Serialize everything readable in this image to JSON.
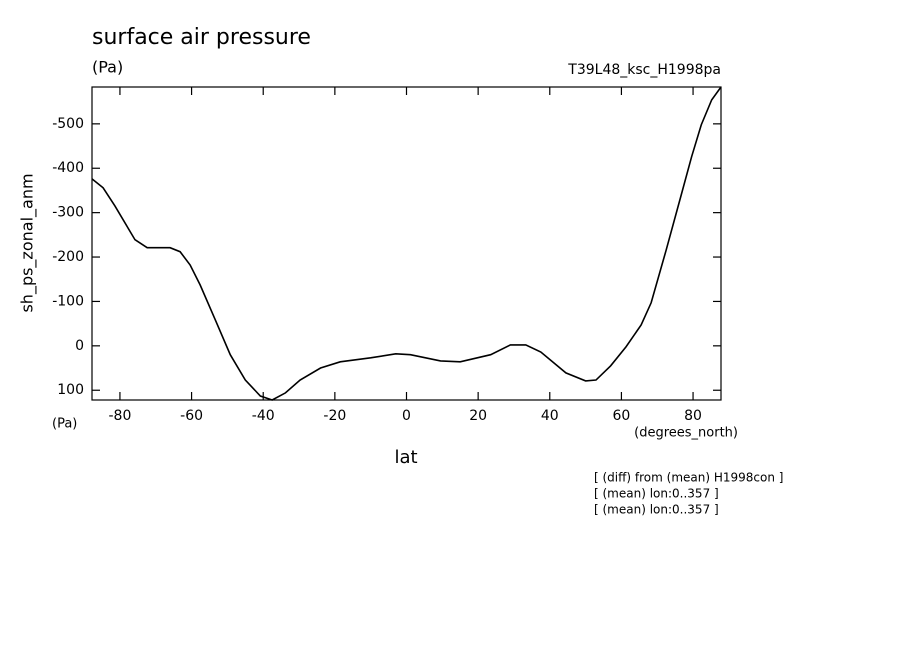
{
  "chart_data": {
    "type": "line",
    "title": "surface air pressure",
    "units_label": "(Pa)",
    "run_label": "T39L48_ksc_H1998pa",
    "y_label": "sh_ps_zonal_anm",
    "y_units": "(Pa)",
    "x_label": "lat",
    "x_units": "(degrees_north)",
    "notes": [
      "[ (diff) from (mean) H1998con ]",
      "[ (mean) lon:0..357 ]",
      "[ (mean) lon:0..357 ]"
    ],
    "x": [
      -87.8,
      -84.7,
      -81.4,
      -75.8,
      -72.4,
      -66,
      -63.2,
      -60.4,
      -57.6,
      -53.4,
      -49.2,
      -45,
      -40.8,
      -37.5,
      -33.8,
      -29.7,
      -24,
      -18.5,
      -10,
      -3,
      1.1,
      9.5,
      15,
      23.5,
      29,
      33.3,
      37.5,
      44.5,
      50,
      52.9,
      57,
      61.3,
      65.5,
      68.3,
      72.5,
      76.7,
      79.6,
      82.3,
      85.2,
      87.8
    ],
    "series": [
      {
        "name": "sh_ps_zonal_anm",
        "color": "#000000",
        "values": [
          -376,
          -356,
          -315,
          -239,
          -221,
          -221,
          -212,
          -182,
          -137,
          -59,
          20,
          77,
          113,
          122,
          106,
          77,
          50,
          36,
          27,
          18,
          20,
          34,
          36,
          20,
          -2,
          -2,
          14,
          61,
          79,
          77,
          45,
          2,
          -47,
          -97,
          -216,
          -340,
          -426,
          -498,
          -554,
          -583
        ]
      }
    ],
    "xlim": [
      -87.8,
      87.8
    ],
    "xticks": [
      -80,
      -60,
      -40,
      -20,
      0,
      20,
      40,
      60,
      80
    ],
    "ylim": [
      122,
      -583
    ],
    "yticks": [
      -500,
      -400,
      -300,
      -200,
      -100,
      0,
      100
    ],
    "grid": false
  }
}
